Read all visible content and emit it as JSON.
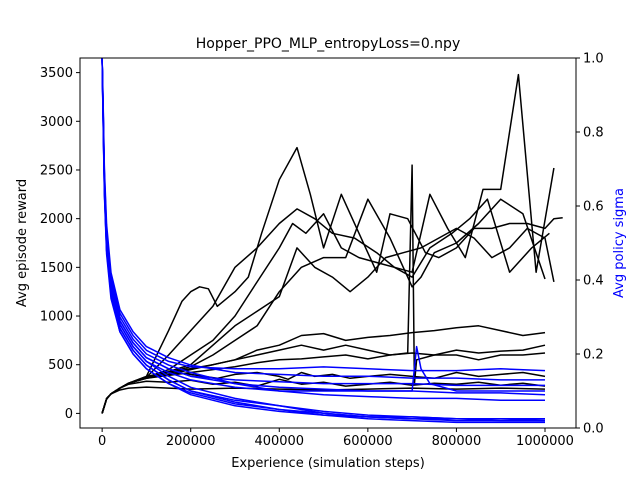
{
  "chart_data": {
    "type": "line",
    "title": "Hopper_PPO_MLP_entropyLoss=0.npy",
    "xlabel": "Experience (simulation steps)",
    "ylabel_left": "Avg episode reward",
    "ylabel_right": "Avg policy sigma",
    "xlim": [
      -50000,
      1070000
    ],
    "ylim_left": [
      -150,
      3650
    ],
    "ylim_right": [
      0.0,
      1.0
    ],
    "x_ticks": [
      0,
      200000,
      400000,
      600000,
      800000,
      1000000
    ],
    "y_ticks_left": [
      0,
      500,
      1000,
      1500,
      2000,
      2500,
      3000,
      3500
    ],
    "y_ticks_right": [
      0.0,
      0.2,
      0.4,
      0.6,
      0.8,
      1.0
    ],
    "colors": {
      "reward": "#000000",
      "sigma": "#0000ff",
      "right_axis_label": "#0000ff"
    },
    "grid": false,
    "reward_series": [
      {
        "x": [
          0,
          10000,
          20000,
          40000,
          60000,
          100000,
          150000,
          200000,
          230000,
          260000,
          300000,
          350000,
          400000,
          420000,
          450000,
          480000,
          520000,
          560000,
          600000,
          650000,
          700000,
          750000,
          800000,
          850000,
          900000,
          950000,
          1000000
        ],
        "y": [
          0,
          150,
          200,
          260,
          310,
          380,
          420,
          400,
          380,
          360,
          400,
          420,
          380,
          350,
          420,
          380,
          400,
          360,
          380,
          400,
          380,
          360,
          420,
          380,
          400,
          420,
          380
        ]
      },
      {
        "x": [
          0,
          10000,
          20000,
          40000,
          60000,
          100000,
          150000,
          180000,
          200000,
          220000,
          240000,
          260000,
          300000,
          330000,
          360000,
          400000,
          440000,
          470000,
          500000,
          540000,
          580000,
          620000,
          650000,
          690000,
          730000,
          760000,
          800000,
          840000,
          880000,
          920000,
          960000,
          1000000,
          1020000,
          1040000
        ],
        "y": [
          0,
          150,
          200,
          260,
          310,
          380,
          850,
          1150,
          1250,
          1300,
          1280,
          1100,
          1250,
          1400,
          1850,
          2400,
          2730,
          2250,
          1700,
          2250,
          1850,
          1450,
          2050,
          2000,
          1650,
          1600,
          1700,
          1900,
          1900,
          1950,
          1950,
          1900,
          2000,
          2010
        ]
      },
      {
        "x": [
          0,
          10000,
          20000,
          40000,
          60000,
          100000,
          150000,
          200000,
          250000,
          300000,
          350000,
          400000,
          440000,
          480000,
          520000,
          570000,
          620000,
          660000,
          700000,
          740000,
          780000,
          820000,
          860000,
          900000,
          940000,
          980000,
          1020000
        ],
        "y": [
          0,
          150,
          200,
          260,
          310,
          370,
          600,
          850,
          1100,
          1500,
          1700,
          1950,
          2100,
          2000,
          1850,
          1800,
          1650,
          1500,
          1450,
          2250,
          1900,
          1600,
          2300,
          2300,
          3480,
          1450,
          2520
        ]
      },
      {
        "x": [
          0,
          10000,
          20000,
          40000,
          60000,
          100000,
          150000,
          200000,
          250000,
          300000,
          350000,
          400000,
          430000,
          460000,
          500000,
          540000,
          580000,
          620000,
          660000,
          700000,
          740000,
          790000,
          830000,
          870000,
          920000,
          970000,
          1010000
        ],
        "y": [
          0,
          150,
          200,
          260,
          310,
          370,
          450,
          600,
          750,
          1000,
          1350,
          1700,
          1950,
          1850,
          2050,
          1700,
          1600,
          1550,
          1500,
          1400,
          1700,
          1850,
          2000,
          2200,
          1450,
          1700,
          1850
        ]
      },
      {
        "x": [
          0,
          10000,
          20000,
          40000,
          60000,
          100000,
          150000,
          200000,
          250000,
          300000,
          350000,
          400000,
          440000,
          480000,
          520000,
          560000,
          600000,
          640000,
          680000,
          720000,
          760000,
          800000,
          840000,
          880000,
          920000,
          960000,
          1000000,
          1020000
        ],
        "y": [
          0,
          150,
          200,
          260,
          310,
          370,
          430,
          500,
          700,
          900,
          1050,
          1200,
          1700,
          1500,
          1400,
          1250,
          1400,
          1600,
          1650,
          1700,
          1800,
          1900,
          1800,
          1600,
          1700,
          1900,
          1800,
          1350
        ]
      },
      {
        "x": [
          0,
          10000,
          20000,
          40000,
          60000,
          100000,
          150000,
          200000,
          250000,
          300000,
          350000,
          400000,
          450000,
          500000,
          550000,
          600000,
          650000,
          700000,
          720000,
          750000,
          800000,
          850000,
          900000,
          950000,
          1000000
        ],
        "y": [
          0,
          150,
          200,
          260,
          310,
          370,
          420,
          480,
          600,
          750,
          900,
          1250,
          1500,
          1600,
          1600,
          2200,
          1800,
          1300,
          1400,
          1650,
          1750,
          1950,
          2200,
          2050,
          1380
        ]
      },
      {
        "x": [
          0,
          10000,
          20000,
          40000,
          60000,
          100000,
          150000,
          200000,
          250000,
          300000,
          350000,
          400000,
          450000,
          500000,
          550000,
          600000,
          650000,
          700000,
          750000,
          800000,
          850000,
          900000,
          950000,
          1000000
        ],
        "y": [
          0,
          150,
          200,
          260,
          310,
          360,
          400,
          450,
          500,
          550,
          650,
          700,
          800,
          820,
          750,
          780,
          800,
          830,
          850,
          880,
          900,
          850,
          800,
          830
        ]
      },
      {
        "x": [
          0,
          10000,
          20000,
          40000,
          60000,
          100000,
          150000,
          200000,
          250000,
          300000,
          350000,
          400000,
          450000,
          500000,
          550000,
          600000,
          650000,
          700000,
          750000,
          800000,
          850000,
          900000,
          950000,
          1000000
        ],
        "y": [
          0,
          150,
          200,
          260,
          310,
          360,
          390,
          420,
          450,
          480,
          520,
          550,
          560,
          580,
          600,
          560,
          600,
          620,
          600,
          650,
          620,
          640,
          650,
          700
        ]
      },
      {
        "x": [
          0,
          10000,
          20000,
          40000,
          60000,
          100000,
          150000,
          200000,
          250000,
          300000,
          350000,
          400000,
          450000,
          500000,
          550000,
          600000,
          650000,
          700000,
          750000,
          800000,
          850000,
          900000,
          950000,
          1000000
        ],
        "y": [
          0,
          150,
          200,
          260,
          300,
          330,
          320,
          340,
          300,
          320,
          280,
          350,
          300,
          320,
          280,
          300,
          320,
          290,
          310,
          300,
          320,
          290,
          310,
          280
        ]
      },
      {
        "x": [
          0,
          10000,
          20000,
          40000,
          60000,
          100000,
          150000,
          200000,
          300000,
          400000,
          500000,
          600000,
          700000,
          800000,
          900000,
          1000000
        ],
        "y": [
          0,
          150,
          200,
          240,
          260,
          270,
          260,
          250,
          260,
          250,
          240,
          250,
          260,
          250,
          260,
          250
        ]
      },
      {
        "x": [
          0,
          10000,
          20000,
          40000,
          60000,
          100000,
          150000,
          200000,
          250000,
          300000,
          350000,
          400000,
          450000,
          500000,
          550000,
          600000,
          650000,
          690000,
          700000,
          705000,
          710000,
          750000,
          800000,
          850000,
          900000,
          950000,
          1000000
        ],
        "y": [
          0,
          150,
          200,
          260,
          310,
          370,
          420,
          460,
          500,
          550,
          600,
          650,
          700,
          650,
          700,
          650,
          600,
          620,
          2550,
          300,
          550,
          600,
          600,
          550,
          600,
          600,
          620
        ]
      }
    ],
    "sigma_series": [
      {
        "x": [
          0,
          2000,
          5000,
          10000,
          20000,
          40000,
          70000,
          100000,
          150000,
          200000,
          300000,
          400000,
          500000,
          600000,
          700000,
          800000,
          900000,
          1000000
        ],
        "y": [
          1.0,
          0.9,
          0.7,
          0.55,
          0.42,
          0.32,
          0.26,
          0.22,
          0.19,
          0.17,
          0.15,
          0.145,
          0.14,
          0.14,
          0.135,
          0.135,
          0.13,
          0.13
        ]
      },
      {
        "x": [
          0,
          2000,
          5000,
          10000,
          20000,
          40000,
          70000,
          100000,
          150000,
          200000,
          300000,
          400000,
          500000,
          600000,
          700000,
          800000,
          900000,
          1000000
        ],
        "y": [
          1.0,
          0.88,
          0.68,
          0.52,
          0.4,
          0.3,
          0.24,
          0.2,
          0.17,
          0.15,
          0.12,
          0.1,
          0.09,
          0.085,
          0.08,
          0.08,
          0.075,
          0.075
        ]
      },
      {
        "x": [
          0,
          2000,
          5000,
          10000,
          20000,
          40000,
          70000,
          100000,
          150000,
          200000,
          300000,
          400000,
          500000,
          600000,
          700000,
          800000,
          900000,
          1000000
        ],
        "y": [
          1.0,
          0.86,
          0.66,
          0.5,
          0.38,
          0.28,
          0.22,
          0.18,
          0.14,
          0.11,
          0.08,
          0.06,
          0.04,
          0.03,
          0.025,
          0.02,
          0.02,
          0.02
        ]
      },
      {
        "x": [
          0,
          2000,
          5000,
          10000,
          20000,
          40000,
          70000,
          100000,
          150000,
          200000,
          300000,
          400000,
          500000,
          600000,
          700000,
          800000,
          900000,
          1000000
        ],
        "y": [
          1.0,
          0.85,
          0.64,
          0.48,
          0.36,
          0.27,
          0.21,
          0.17,
          0.13,
          0.1,
          0.07,
          0.05,
          0.035,
          0.025,
          0.02,
          0.015,
          0.015,
          0.015
        ]
      },
      {
        "x": [
          0,
          2000,
          5000,
          10000,
          20000,
          40000,
          70000,
          100000,
          150000,
          200000,
          300000,
          400000,
          500000,
          600000,
          700000,
          800000,
          900000,
          1000000
        ],
        "y": [
          1.0,
          0.87,
          0.67,
          0.51,
          0.39,
          0.29,
          0.23,
          0.19,
          0.16,
          0.14,
          0.12,
          0.11,
          0.105,
          0.1,
          0.1,
          0.095,
          0.095,
          0.09
        ]
      },
      {
        "x": [
          0,
          2000,
          5000,
          10000,
          20000,
          40000,
          70000,
          100000,
          150000,
          200000,
          300000,
          400000,
          500000,
          600000,
          700000,
          800000,
          900000,
          1000000
        ],
        "y": [
          1.0,
          0.89,
          0.69,
          0.53,
          0.41,
          0.31,
          0.25,
          0.21,
          0.18,
          0.165,
          0.16,
          0.16,
          0.165,
          0.16,
          0.155,
          0.155,
          0.16,
          0.155
        ]
      },
      {
        "x": [
          0,
          2000,
          5000,
          10000,
          20000,
          40000,
          70000,
          100000,
          150000,
          200000,
          300000,
          400000,
          500000,
          600000,
          700000,
          800000,
          900000,
          1000000
        ],
        "y": [
          1.0,
          0.84,
          0.63,
          0.47,
          0.35,
          0.26,
          0.2,
          0.16,
          0.12,
          0.09,
          0.06,
          0.045,
          0.035,
          0.03,
          0.025,
          0.025,
          0.02,
          0.02
        ]
      },
      {
        "x": [
          0,
          2000,
          5000,
          10000,
          20000,
          40000,
          70000,
          100000,
          150000,
          200000,
          300000,
          400000,
          500000,
          600000,
          650000,
          700000,
          710000,
          720000,
          740000,
          800000,
          900000,
          1000000
        ],
        "y": [
          1.0,
          0.87,
          0.66,
          0.5,
          0.38,
          0.28,
          0.22,
          0.18,
          0.15,
          0.13,
          0.11,
          0.1,
          0.1,
          0.1,
          0.1,
          0.1,
          0.22,
          0.16,
          0.12,
          0.1,
          0.1,
          0.1
        ]
      },
      {
        "x": [
          0,
          2000,
          5000,
          10000,
          20000,
          40000,
          70000,
          100000,
          150000,
          200000,
          300000,
          400000,
          500000,
          600000,
          700000,
          800000,
          900000,
          1000000
        ],
        "y": [
          1.0,
          0.86,
          0.65,
          0.49,
          0.37,
          0.27,
          0.21,
          0.17,
          0.13,
          0.1,
          0.075,
          0.06,
          0.045,
          0.035,
          0.03,
          0.025,
          0.025,
          0.025
        ]
      },
      {
        "x": [
          0,
          2000,
          5000,
          10000,
          20000,
          40000,
          70000,
          100000,
          150000,
          200000,
          300000,
          400000,
          500000,
          600000,
          700000,
          800000,
          900000,
          1000000
        ],
        "y": [
          1.0,
          0.88,
          0.67,
          0.51,
          0.39,
          0.29,
          0.23,
          0.19,
          0.16,
          0.14,
          0.13,
          0.125,
          0.12,
          0.12,
          0.12,
          0.115,
          0.115,
          0.115
        ]
      },
      {
        "x": [
          0,
          2000,
          5000,
          10000,
          20000,
          40000,
          70000,
          100000,
          150000,
          200000,
          300000,
          400000,
          500000,
          600000,
          700000,
          800000,
          900000,
          1000000
        ],
        "y": [
          1.0,
          0.85,
          0.64,
          0.48,
          0.36,
          0.26,
          0.2,
          0.16,
          0.12,
          0.095,
          0.065,
          0.05,
          0.04,
          0.03,
          0.03,
          0.025,
          0.025,
          0.02
        ]
      }
    ]
  }
}
